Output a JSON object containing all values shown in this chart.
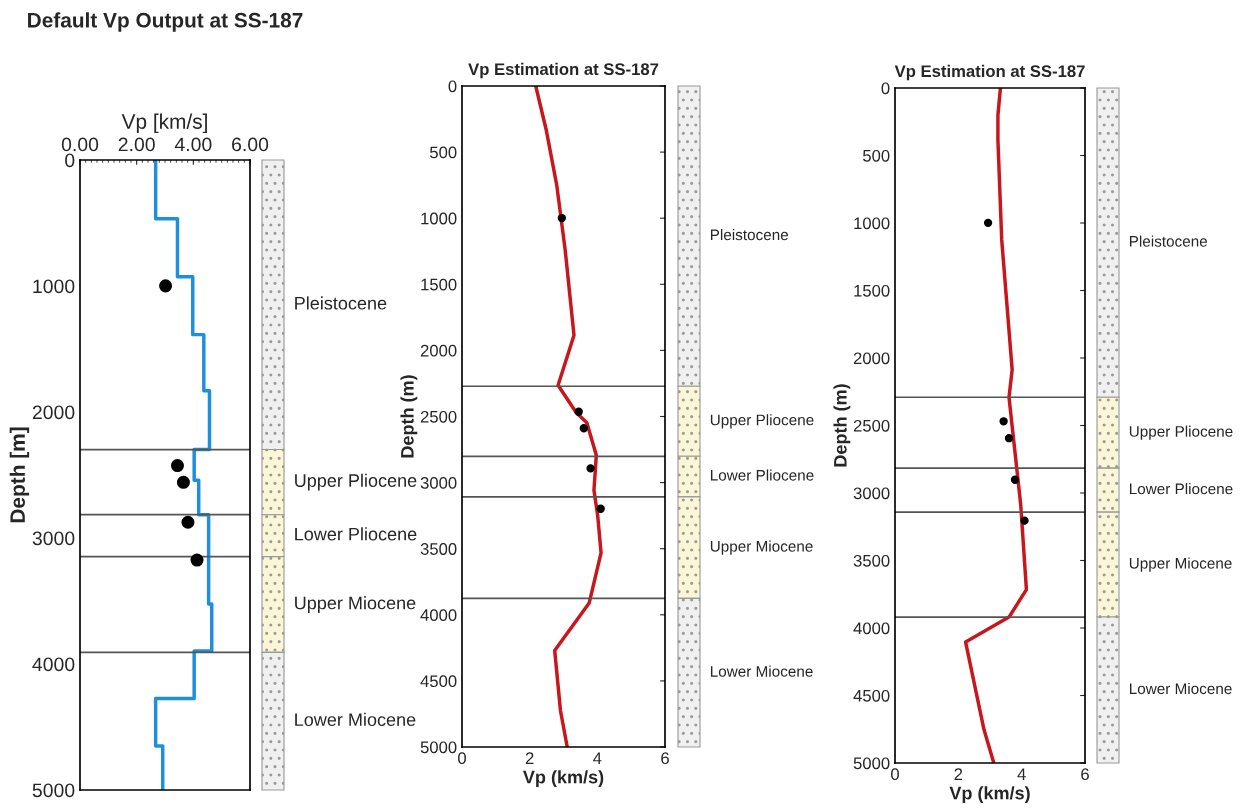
{
  "chart_data": [
    {
      "type": "line",
      "title": "Default Vp Output at SS-187",
      "xlabel": "Vp [km/s]",
      "ylabel": "Depth [m]",
      "xlim": [
        0,
        6
      ],
      "xticks": [
        {
          "value": 0,
          "label": "0.00"
        },
        {
          "value": 2,
          "label": "2.00"
        },
        {
          "value": 4,
          "label": "4.00"
        },
        {
          "value": 6,
          "label": "6.00"
        }
      ],
      "ylim": [
        5000,
        0
      ],
      "yticks": [
        0,
        1000,
        2000,
        3000,
        4000,
        5000
      ],
      "grid": false,
      "series": [
        {
          "type": "line",
          "color": "#1e8fdc",
          "x": [
            2.67,
            2.67,
            3.44,
            3.44,
            3.98,
            3.98,
            4.37,
            4.37,
            4.57,
            4.57,
            4.03,
            4.03,
            4.19,
            4.19,
            4.54,
            4.54,
            4.65,
            4.65,
            4.03,
            4.03,
            2.67,
            2.67,
            2.92,
            2.92
          ],
          "values": [
            0,
            466,
            466,
            926,
            926,
            1386,
            1386,
            1832,
            1832,
            2298,
            2298,
            2542,
            2542,
            2815,
            2815,
            3524,
            3524,
            3897,
            3897,
            4274,
            4274,
            4650,
            4650,
            5000
          ]
        },
        {
          "type": "scatter",
          "color": "#000000",
          "marker": "circle",
          "x": [
            3.02,
            3.44,
            3.65,
            3.81,
            4.13
          ],
          "values": [
            999,
            2425,
            2558,
            2875,
            3175
          ]
        }
      ],
      "ref_lines": [
        {
          "axis": "y",
          "value": 2298
        },
        {
          "axis": "y",
          "value": 2815
        },
        {
          "axis": "y",
          "value": 3148
        },
        {
          "axis": "y",
          "value": 3908
        }
      ],
      "annotations": [
        "Pleistocene",
        "Upper Pliocene",
        "Lower Pliocene",
        "Upper Miocene",
        "Lower Miocene"
      ]
    },
    {
      "type": "line",
      "title": "Vp Estimation at SS-187",
      "xlabel": "Vp (km/s)",
      "ylabel": "Depth (m)",
      "xlim": [
        0,
        6
      ],
      "xticks": [
        0,
        2,
        4,
        6
      ],
      "ylim": [
        5000,
        0
      ],
      "yticks": [
        0,
        500,
        1000,
        1500,
        2000,
        2500,
        3000,
        3500,
        4000,
        4500,
        5000
      ],
      "grid": false,
      "series": [
        {
          "type": "line",
          "color": "#c8161d",
          "x": [
            2.18,
            2.49,
            2.8,
            3.05,
            3.31,
            2.84,
            3.38,
            3.69,
            3.97,
            3.9,
            4.01,
            4.11,
            3.76,
            2.74,
            2.91,
            3.11
          ],
          "values": [
            0,
            333,
            750,
            1241,
            1885,
            2263,
            2472,
            2547,
            2793,
            3058,
            3248,
            3532,
            3910,
            4270,
            4724,
            5000
          ]
        },
        {
          "type": "scatter",
          "color": "#000000",
          "marker": "circle",
          "x": [
            2.95,
            3.45,
            3.6,
            3.8,
            4.1
          ],
          "values": [
            999,
            2464,
            2589,
            2892,
            3198
          ]
        }
      ],
      "ref_lines": [
        {
          "axis": "y",
          "value": 2271
        },
        {
          "axis": "y",
          "value": 2801
        },
        {
          "axis": "y",
          "value": 3108
        },
        {
          "axis": "y",
          "value": 3876
        }
      ],
      "annotations": [
        "Pleistocene",
        "Upper Pliocene",
        "Lower Pliocene",
        "Upper Miocene",
        "Lower Miocene"
      ]
    },
    {
      "type": "line",
      "title": "Vp Estimation at SS-187",
      "xlabel": "Vp (km/s)",
      "ylabel": "Depth (m)",
      "xlim": [
        0,
        6
      ],
      "xticks": [
        0,
        2,
        4,
        6
      ],
      "ylim": [
        5000,
        0
      ],
      "yticks": [
        0,
        500,
        1000,
        1500,
        2000,
        2500,
        3000,
        3500,
        4000,
        4500,
        5000
      ],
      "grid": false,
      "series": [
        {
          "type": "line",
          "color": "#c8161d",
          "x": [
            3.33,
            3.25,
            3.25,
            3.37,
            3.7,
            3.6,
            3.97,
            4.15,
            3.6,
            2.23,
            2.81,
            3.12
          ],
          "values": [
            0,
            200,
            385,
            1125,
            2087,
            2291,
            3087,
            3716,
            3919,
            4104,
            4752,
            5000
          ]
        },
        {
          "type": "scatter",
          "color": "#000000",
          "marker": "circle",
          "x": [
            2.94,
            3.43,
            3.6,
            3.79,
            4.09
          ],
          "values": [
            999,
            2469,
            2594,
            2902,
            3205
          ]
        }
      ],
      "ref_lines": [
        {
          "axis": "y",
          "value": 2291
        },
        {
          "axis": "y",
          "value": 2816
        },
        {
          "axis": "y",
          "value": 3142
        },
        {
          "axis": "y",
          "value": 3919
        }
      ],
      "annotations": [
        "Pleistocene",
        "Upper Pliocene",
        "Lower Pliocene",
        "Upper Miocene",
        "Lower Miocene"
      ]
    }
  ]
}
